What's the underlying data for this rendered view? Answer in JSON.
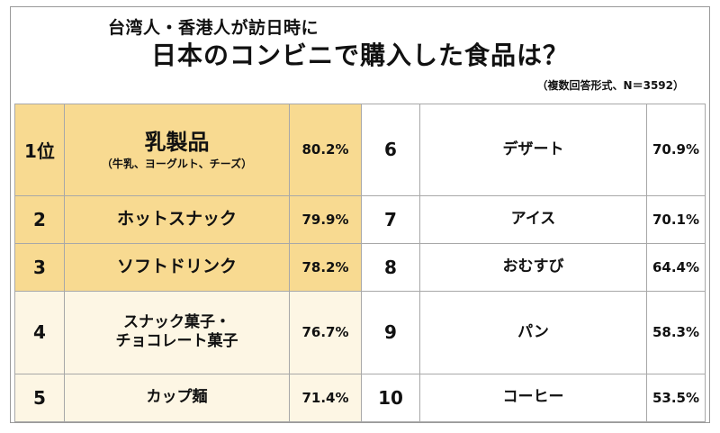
{
  "header": {
    "title_line1": "台湾人・香港人が訪日時に",
    "title_line2": "日本のコンビニで購入した食品は？",
    "note": "（複数回答形式、N＝3592）"
  },
  "chart_data": {
    "type": "table",
    "rows": [
      {
        "rank": "1位",
        "item": "乳製品",
        "item_sub": "（牛乳、ヨーグルト、チーズ）",
        "value": "80.2%"
      },
      {
        "rank": "2",
        "item": "ホットスナック",
        "value": "79.9%"
      },
      {
        "rank": "3",
        "item": "ソフトドリンク",
        "value": "78.2%"
      },
      {
        "rank": "4",
        "item_line1": "スナック菓子・",
        "item_line2": "チョコレート菓子",
        "value": "76.7%"
      },
      {
        "rank": "5",
        "item": "カップ麺",
        "value": "71.4%"
      },
      {
        "rank": "6",
        "item": "デザート",
        "value": "70.9%"
      },
      {
        "rank": "7",
        "item": "アイス",
        "value": "70.1%"
      },
      {
        "rank": "8",
        "item": "おむすび",
        "value": "64.4%"
      },
      {
        "rank": "9",
        "item": "パン",
        "value": "58.3%"
      },
      {
        "rank": "10",
        "item": "コーヒー",
        "value": "53.5%"
      }
    ]
  },
  "colors": {
    "highlight": "#f8da91",
    "row_fill": "#fdf6e4",
    "border": "#a8a8a8"
  }
}
